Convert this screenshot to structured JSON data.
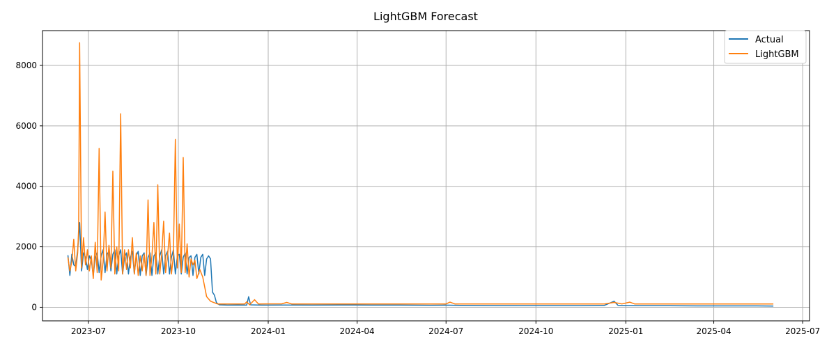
{
  "chart_data": {
    "type": "line",
    "title": "LightGBM Forecast",
    "xlabel": "",
    "ylabel": "",
    "x_range": [
      "2023-05-15",
      "2025-07-08"
    ],
    "ylim": [
      -450,
      9150
    ],
    "x_ticks": [
      "2023-07",
      "2023-10",
      "2024-01",
      "2024-04",
      "2024-07",
      "2024-10",
      "2025-01",
      "2025-04",
      "2025-07"
    ],
    "x_tick_dates": [
      "2023-07-01",
      "2023-10-01",
      "2024-01-01",
      "2024-04-01",
      "2024-07-01",
      "2024-10-01",
      "2025-01-01",
      "2025-04-01",
      "2025-07-01"
    ],
    "y_ticks": [
      0,
      2000,
      4000,
      6000,
      8000
    ],
    "grid": true,
    "legend_position": "upper right",
    "series": [
      {
        "name": "Actual",
        "color": "#1f77b4",
        "points": [
          [
            "2023-06-10",
            1720
          ],
          [
            "2023-06-12",
            1050
          ],
          [
            "2023-06-14",
            1750
          ],
          [
            "2023-06-16",
            1400
          ],
          [
            "2023-06-18",
            1350
          ],
          [
            "2023-06-20",
            1900
          ],
          [
            "2023-06-22",
            2800
          ],
          [
            "2023-06-24",
            1200
          ],
          [
            "2023-06-26",
            1800
          ],
          [
            "2023-06-28",
            1650
          ],
          [
            "2023-06-30",
            1250
          ],
          [
            "2023-07-02",
            1700
          ],
          [
            "2023-07-04",
            1550
          ],
          [
            "2023-07-06",
            1050
          ],
          [
            "2023-07-08",
            1650
          ],
          [
            "2023-07-10",
            1800
          ],
          [
            "2023-07-12",
            1150
          ],
          [
            "2023-07-14",
            1700
          ],
          [
            "2023-07-16",
            1900
          ],
          [
            "2023-07-18",
            1150
          ],
          [
            "2023-07-20",
            1750
          ],
          [
            "2023-07-22",
            1850
          ],
          [
            "2023-07-24",
            1200
          ],
          [
            "2023-07-26",
            1750
          ],
          [
            "2023-07-28",
            1900
          ],
          [
            "2023-07-30",
            1100
          ],
          [
            "2023-08-01",
            1700
          ],
          [
            "2023-08-03",
            1900
          ],
          [
            "2023-08-05",
            1100
          ],
          [
            "2023-08-07",
            1650
          ],
          [
            "2023-08-09",
            1800
          ],
          [
            "2023-08-11",
            1100
          ],
          [
            "2023-08-13",
            1650
          ],
          [
            "2023-08-15",
            1850
          ],
          [
            "2023-08-17",
            1100
          ],
          [
            "2023-08-19",
            1700
          ],
          [
            "2023-08-21",
            1850
          ],
          [
            "2023-08-23",
            1050
          ],
          [
            "2023-08-25",
            1700
          ],
          [
            "2023-08-27",
            1800
          ],
          [
            "2023-08-29",
            1050
          ],
          [
            "2023-08-31",
            1650
          ],
          [
            "2023-09-02",
            1800
          ],
          [
            "2023-09-04",
            1050
          ],
          [
            "2023-09-06",
            1700
          ],
          [
            "2023-09-08",
            1800
          ],
          [
            "2023-09-10",
            1100
          ],
          [
            "2023-09-12",
            1700
          ],
          [
            "2023-09-14",
            1900
          ],
          [
            "2023-09-16",
            1100
          ],
          [
            "2023-09-18",
            1700
          ],
          [
            "2023-09-20",
            1850
          ],
          [
            "2023-09-22",
            1100
          ],
          [
            "2023-09-24",
            1650
          ],
          [
            "2023-09-26",
            1900
          ],
          [
            "2023-09-28",
            1100
          ],
          [
            "2023-09-30",
            1700
          ],
          [
            "2023-10-02",
            1750
          ],
          [
            "2023-10-04",
            1100
          ],
          [
            "2023-10-06",
            1650
          ],
          [
            "2023-10-08",
            1800
          ],
          [
            "2023-10-10",
            1100
          ],
          [
            "2023-10-12",
            1650
          ],
          [
            "2023-10-14",
            1700
          ],
          [
            "2023-10-16",
            1050
          ],
          [
            "2023-10-18",
            1650
          ],
          [
            "2023-10-20",
            1750
          ],
          [
            "2023-10-22",
            1100
          ],
          [
            "2023-10-24",
            1650
          ],
          [
            "2023-10-26",
            1750
          ],
          [
            "2023-10-28",
            1050
          ],
          [
            "2023-10-30",
            1600
          ],
          [
            "2023-11-01",
            1700
          ],
          [
            "2023-11-03",
            1600
          ],
          [
            "2023-11-05",
            500
          ],
          [
            "2023-11-07",
            400
          ],
          [
            "2023-11-09",
            150
          ],
          [
            "2023-11-12",
            80
          ],
          [
            "2023-11-20",
            70
          ],
          [
            "2023-12-01",
            75
          ],
          [
            "2023-12-10",
            70
          ],
          [
            "2023-12-12",
            350
          ],
          [
            "2023-12-14",
            80
          ],
          [
            "2023-12-25",
            70
          ],
          [
            "2024-01-15",
            75
          ],
          [
            "2024-02-15",
            70
          ],
          [
            "2024-03-15",
            75
          ],
          [
            "2024-04-15",
            70
          ],
          [
            "2024-05-15",
            70
          ],
          [
            "2024-06-15",
            65
          ],
          [
            "2024-07-01",
            70
          ],
          [
            "2024-07-15",
            60
          ],
          [
            "2024-08-15",
            55
          ],
          [
            "2024-09-15",
            50
          ],
          [
            "2024-10-15",
            50
          ],
          [
            "2024-11-15",
            50
          ],
          [
            "2024-12-10",
            60
          ],
          [
            "2024-12-20",
            200
          ],
          [
            "2024-12-24",
            60
          ],
          [
            "2025-01-15",
            50
          ],
          [
            "2025-02-15",
            50
          ],
          [
            "2025-03-15",
            45
          ],
          [
            "2025-04-15",
            45
          ],
          [
            "2025-05-15",
            45
          ],
          [
            "2025-06-01",
            40
          ]
        ]
      },
      {
        "name": "LightGBM",
        "color": "#ff7f0e",
        "points": [
          [
            "2023-06-10",
            1650
          ],
          [
            "2023-06-12",
            1200
          ],
          [
            "2023-06-14",
            1500
          ],
          [
            "2023-06-16",
            2250
          ],
          [
            "2023-06-18",
            1200
          ],
          [
            "2023-06-20",
            1800
          ],
          [
            "2023-06-21",
            2600
          ],
          [
            "2023-06-22",
            8750
          ],
          [
            "2023-06-24",
            1300
          ],
          [
            "2023-06-26",
            2300
          ],
          [
            "2023-06-28",
            1400
          ],
          [
            "2023-06-30",
            1900
          ],
          [
            "2023-07-02",
            1200
          ],
          [
            "2023-07-04",
            1700
          ],
          [
            "2023-07-06",
            950
          ],
          [
            "2023-07-08",
            2150
          ],
          [
            "2023-07-10",
            1150
          ],
          [
            "2023-07-12",
            5250
          ],
          [
            "2023-07-14",
            900
          ],
          [
            "2023-07-16",
            1500
          ],
          [
            "2023-07-18",
            3150
          ],
          [
            "2023-07-20",
            1200
          ],
          [
            "2023-07-22",
            2050
          ],
          [
            "2023-07-24",
            1300
          ],
          [
            "2023-07-26",
            4500
          ],
          [
            "2023-07-28",
            1100
          ],
          [
            "2023-07-30",
            2000
          ],
          [
            "2023-08-01",
            1200
          ],
          [
            "2023-08-03",
            6400
          ],
          [
            "2023-08-05",
            1100
          ],
          [
            "2023-08-07",
            1900
          ],
          [
            "2023-08-09",
            1250
          ],
          [
            "2023-08-11",
            1900
          ],
          [
            "2023-08-13",
            1300
          ],
          [
            "2023-08-15",
            2300
          ],
          [
            "2023-08-17",
            1100
          ],
          [
            "2023-08-19",
            1800
          ],
          [
            "2023-08-21",
            1050
          ],
          [
            "2023-08-23",
            1700
          ],
          [
            "2023-08-25",
            1200
          ],
          [
            "2023-08-27",
            1750
          ],
          [
            "2023-08-29",
            1050
          ],
          [
            "2023-08-31",
            3550
          ],
          [
            "2023-09-02",
            1050
          ],
          [
            "2023-09-04",
            1700
          ],
          [
            "2023-09-06",
            2800
          ],
          [
            "2023-09-08",
            1100
          ],
          [
            "2023-09-10",
            4050
          ],
          [
            "2023-09-12",
            1100
          ],
          [
            "2023-09-14",
            1750
          ],
          [
            "2023-09-16",
            2850
          ],
          [
            "2023-09-18",
            1150
          ],
          [
            "2023-09-20",
            1700
          ],
          [
            "2023-09-22",
            2450
          ],
          [
            "2023-09-24",
            1100
          ],
          [
            "2023-09-26",
            1700
          ],
          [
            "2023-09-28",
            5550
          ],
          [
            "2023-09-30",
            1300
          ],
          [
            "2023-10-02",
            2750
          ],
          [
            "2023-10-04",
            1150
          ],
          [
            "2023-10-06",
            4950
          ],
          [
            "2023-10-08",
            1150
          ],
          [
            "2023-10-10",
            2100
          ],
          [
            "2023-10-12",
            1000
          ],
          [
            "2023-10-14",
            1600
          ],
          [
            "2023-10-16",
            1400
          ],
          [
            "2023-10-18",
            1550
          ],
          [
            "2023-10-20",
            950
          ],
          [
            "2023-10-23",
            1250
          ],
          [
            "2023-10-26",
            1000
          ],
          [
            "2023-10-30",
            350
          ],
          [
            "2023-11-03",
            200
          ],
          [
            "2023-11-10",
            110
          ],
          [
            "2023-11-20",
            110
          ],
          [
            "2023-12-01",
            110
          ],
          [
            "2023-12-08",
            110
          ],
          [
            "2023-12-10",
            180
          ],
          [
            "2023-12-13",
            80
          ],
          [
            "2023-12-18",
            250
          ],
          [
            "2023-12-22",
            110
          ],
          [
            "2024-01-15",
            115
          ],
          [
            "2024-01-20",
            160
          ],
          [
            "2024-01-25",
            110
          ],
          [
            "2024-02-15",
            110
          ],
          [
            "2024-03-15",
            110
          ],
          [
            "2024-04-15",
            110
          ],
          [
            "2024-05-15",
            110
          ],
          [
            "2024-06-15",
            110
          ],
          [
            "2024-07-01",
            110
          ],
          [
            "2024-07-05",
            170
          ],
          [
            "2024-07-10",
            110
          ],
          [
            "2024-08-15",
            110
          ],
          [
            "2024-09-15",
            110
          ],
          [
            "2024-10-15",
            110
          ],
          [
            "2024-11-15",
            110
          ],
          [
            "2024-12-10",
            110
          ],
          [
            "2024-12-20",
            160
          ],
          [
            "2024-12-28",
            110
          ],
          [
            "2025-01-05",
            170
          ],
          [
            "2025-01-10",
            110
          ],
          [
            "2025-02-15",
            110
          ],
          [
            "2025-03-15",
            110
          ],
          [
            "2025-04-15",
            110
          ],
          [
            "2025-05-15",
            110
          ],
          [
            "2025-06-01",
            110
          ]
        ]
      }
    ]
  }
}
